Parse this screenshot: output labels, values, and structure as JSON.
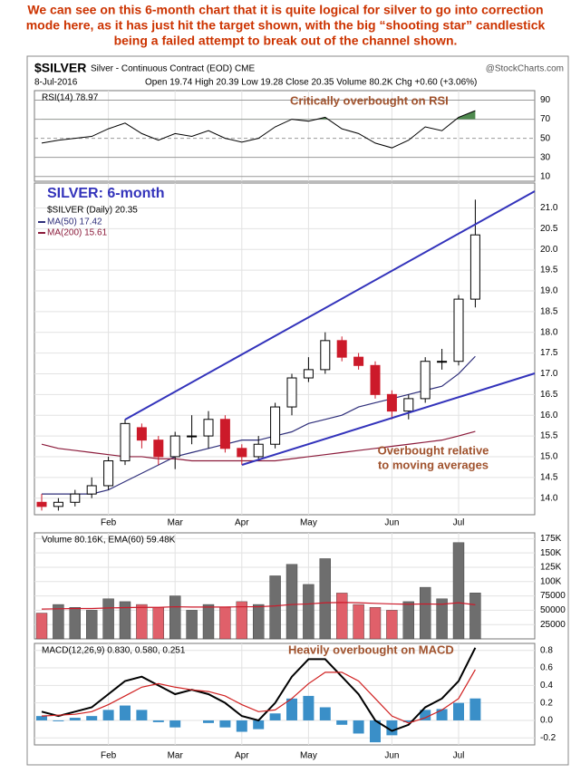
{
  "note": [
    "We can see on this 6-month chart that it is quite logical for silver to go into correction",
    "mode here, as it has just hit the target shown, with the big “shooting star” candlestick",
    "being a failed attempt to break out of the channel shown."
  ],
  "header": {
    "symbol": "$SILVER",
    "name": "Silver - Continuous Contract (EOD) CME",
    "source": "@StockCharts.com",
    "date": "8-Jul-2016",
    "quote": "Open 19.74  High 20.39  Low 19.28  Close 20.35  Volume 80.2K  Chg +0.60 (+3.06%)"
  },
  "chart_data": [
    {
      "type": "line",
      "title": "RSI(14) 78.97",
      "annotation": "Critically overbought on RSI",
      "color": "#000000",
      "values": [
        45,
        48,
        50,
        52,
        60,
        66,
        55,
        48,
        55,
        52,
        58,
        50,
        46,
        50,
        62,
        70,
        68,
        72,
        60,
        55,
        45,
        40,
        48,
        62,
        58,
        72,
        78.97
      ],
      "ylim": [
        5,
        100
      ],
      "yticks": [
        10,
        30,
        50,
        70,
        90
      ],
      "overbought_level": 70,
      "overbought_color": "#4f8a4f"
    },
    {
      "type": "candlestick",
      "title": "SILVER: 6-month",
      "legend_label": "$SILVER (Daily) 20.35",
      "annotation": [
        "Overbought relative",
        "to moving averages"
      ],
      "categories": [
        null,
        null,
        null,
        null,
        "Feb",
        null,
        null,
        null,
        "Mar",
        null,
        null,
        null,
        "Apr",
        null,
        null,
        null,
        "May",
        null,
        null,
        null,
        null,
        "Jun",
        null,
        null,
        null,
        "Jul",
        null
      ],
      "open": [
        13.9,
        13.8,
        13.9,
        14.1,
        14.3,
        14.9,
        15.7,
        15.4,
        15.0,
        15.5,
        15.5,
        15.9,
        15.2,
        15.0,
        15.3,
        16.2,
        16.9,
        17.1,
        17.8,
        17.4,
        17.2,
        16.5,
        16.1,
        16.4,
        17.3,
        17.3,
        18.8
      ],
      "high": [
        14.1,
        14.0,
        14.2,
        14.5,
        15.0,
        15.9,
        15.8,
        15.5,
        15.6,
        16.0,
        16.1,
        16.0,
        15.3,
        15.5,
        16.3,
        17.0,
        17.4,
        18.0,
        17.9,
        17.5,
        17.3,
        16.6,
        16.5,
        17.4,
        17.6,
        18.9,
        21.2
      ],
      "low": [
        13.7,
        13.7,
        13.8,
        14.0,
        14.2,
        14.8,
        15.2,
        14.8,
        14.7,
        15.3,
        15.2,
        15.1,
        14.8,
        14.9,
        15.2,
        16.0,
        16.8,
        17.0,
        17.3,
        17.1,
        16.4,
        15.9,
        15.9,
        16.3,
        17.1,
        17.2,
        18.6
      ],
      "close": [
        13.8,
        13.9,
        14.1,
        14.3,
        14.9,
        15.8,
        15.4,
        15.0,
        15.5,
        15.5,
        15.9,
        15.2,
        15.0,
        15.3,
        16.2,
        16.9,
        17.1,
        17.8,
        17.4,
        17.2,
        16.5,
        16.1,
        16.4,
        17.3,
        17.3,
        18.8,
        20.35
      ],
      "up_color": "#000000",
      "down_color": "#cc1a2a",
      "series": [
        {
          "name": "MA(50) 17.42",
          "color": "#2e2e7a",
          "values": [
            14.1,
            14.1,
            14.1,
            14.1,
            14.2,
            14.4,
            14.6,
            14.8,
            15.0,
            15.1,
            15.2,
            15.3,
            15.4,
            15.4,
            15.5,
            15.6,
            15.8,
            15.9,
            16.0,
            16.2,
            16.3,
            16.4,
            16.5,
            16.6,
            16.7,
            17.0,
            17.42
          ]
        },
        {
          "name": "MA(200) 15.61",
          "color": "#8b1a3a",
          "values": [
            15.3,
            15.2,
            15.15,
            15.1,
            15.05,
            15.0,
            15.0,
            14.95,
            14.95,
            14.9,
            14.9,
            14.9,
            14.9,
            14.9,
            14.9,
            14.95,
            15.0,
            15.05,
            15.1,
            15.15,
            15.2,
            15.25,
            15.3,
            15.35,
            15.4,
            15.5,
            15.61
          ]
        }
      ],
      "ylim": [
        13.6,
        21.6
      ],
      "yticks": [
        {
          "value": 14,
          "label": "14.0"
        },
        14.5,
        {
          "value": 15,
          "label": "15.0"
        },
        15.5,
        {
          "value": 16,
          "label": "16.0"
        },
        16.5,
        {
          "value": 17,
          "label": "17.0"
        },
        17.5,
        {
          "value": 18,
          "label": "18.0"
        },
        18.5,
        {
          "value": 19,
          "label": "19.0"
        },
        19.5,
        {
          "value": 20,
          "label": "20.0"
        },
        20.5,
        {
          "value": 21,
          "label": "21.0"
        }
      ],
      "grid": true
    },
    {
      "type": "bar",
      "title": "Volume 80.16K, EMA(60) 59.48K",
      "up_color": "#6e6e6e",
      "down_color": "#e0606a",
      "values": [
        45000,
        60000,
        55000,
        50000,
        70000,
        65000,
        60000,
        55000,
        75000,
        50000,
        60000,
        55000,
        65000,
        60000,
        110000,
        130000,
        95000,
        140000,
        80000,
        60000,
        55000,
        50000,
        65000,
        90000,
        70000,
        168000,
        80160
      ],
      "series": [
        {
          "color": "#cc1a2a",
          "values": [
            52000,
            52500,
            53000,
            53000,
            54000,
            54500,
            55000,
            55000,
            56000,
            55500,
            55500,
            55500,
            56000,
            56000,
            57500,
            60000,
            61000,
            63000,
            63500,
            63000,
            62000,
            61000,
            60500,
            61000,
            60500,
            63000,
            59480
          ]
        }
      ],
      "ylim": [
        0,
        185000
      ],
      "yticks": [
        25000,
        50000,
        75000,
        {
          "value": 100000,
          "label": "100K"
        },
        {
          "value": 125000,
          "label": "125K"
        },
        {
          "value": 150000,
          "label": "150K"
        },
        {
          "value": 175000,
          "label": "175K"
        }
      ],
      "grid": true
    },
    {
      "type": "macd",
      "title": "MACD(12,26,9) 0.830, 0.580, 0.251",
      "annotation": "Heavily overbought on MACD",
      "series": [
        {
          "color": "#000000",
          "values": [
            0.1,
            0.05,
            0.1,
            0.15,
            0.3,
            0.45,
            0.5,
            0.4,
            0.3,
            0.35,
            0.3,
            0.2,
            0.05,
            0.0,
            0.2,
            0.5,
            0.7,
            0.7,
            0.5,
            0.3,
            0.0,
            -0.12,
            -0.05,
            0.15,
            0.25,
            0.45,
            0.83
          ]
        },
        {
          "color": "#d02020",
          "values": [
            0.05,
            0.06,
            0.07,
            0.1,
            0.18,
            0.28,
            0.38,
            0.42,
            0.38,
            0.35,
            0.33,
            0.28,
            0.18,
            0.1,
            0.12,
            0.25,
            0.42,
            0.55,
            0.55,
            0.45,
            0.25,
            0.05,
            -0.03,
            0.03,
            0.12,
            0.25,
            0.58
          ]
        }
      ],
      "histogram": {
        "color": "#3a8fc8",
        "values": [
          0.05,
          -0.01,
          0.03,
          0.05,
          0.12,
          0.17,
          0.12,
          -0.02,
          -0.08,
          0,
          -0.03,
          -0.08,
          -0.13,
          -0.1,
          0.08,
          0.25,
          0.28,
          0.15,
          -0.05,
          -0.15,
          -0.25,
          -0.17,
          -0.02,
          0.12,
          0.13,
          0.2,
          0.251
        ]
      },
      "ylim": [
        -0.28,
        0.88
      ],
      "yticks": [
        -0.2,
        {
          "value": 0,
          "label": "0.0"
        },
        0.2,
        0.4,
        0.6,
        0.8
      ],
      "grid": true
    }
  ]
}
